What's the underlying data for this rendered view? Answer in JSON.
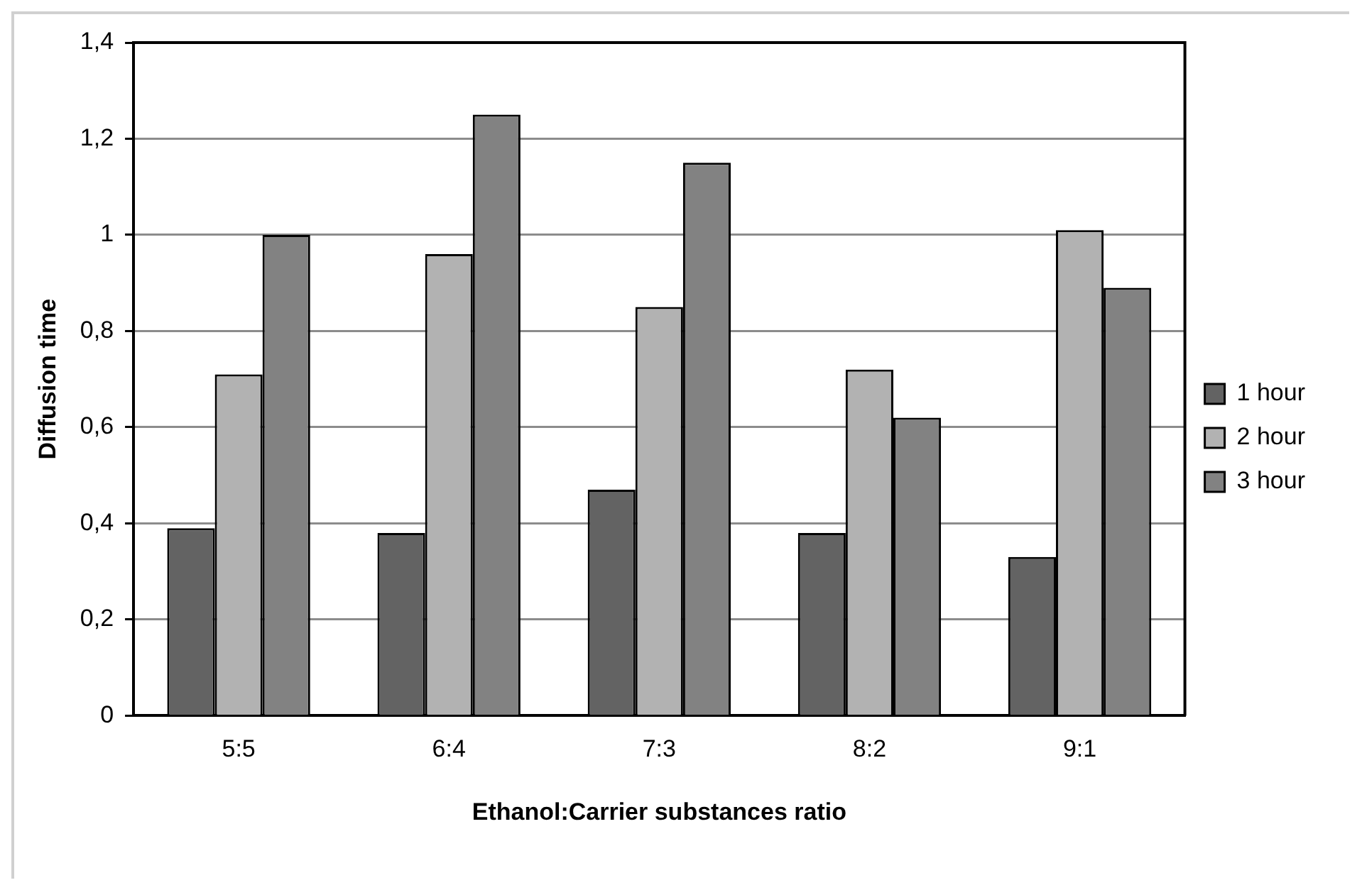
{
  "chart_data": {
    "type": "bar",
    "xlabel": "Ethanol:Carrier substances ratio",
    "ylabel": "Diffusion time",
    "categories": [
      "5:5",
      "6:4",
      "7:3",
      "8:2",
      "9:1"
    ],
    "series": [
      {
        "name": "1 hour",
        "color": "#636363",
        "values": [
          0.39,
          0.38,
          0.47,
          0.38,
          0.33
        ]
      },
      {
        "name": "2 hour",
        "color": "#b2b2b2",
        "values": [
          0.71,
          0.96,
          0.85,
          0.72,
          1.01
        ]
      },
      {
        "name": "3 hour",
        "color": "#828282",
        "values": [
          1.0,
          1.25,
          1.15,
          0.62,
          0.89
        ]
      }
    ],
    "ylim": [
      0,
      1.4
    ],
    "yticks": [
      0,
      {
        "value": 0.2,
        "label": "0,2"
      },
      {
        "value": 0.4,
        "label": "0,4"
      },
      {
        "value": 0.6,
        "label": "0,6"
      },
      {
        "value": 0.8,
        "label": "0,8"
      },
      1,
      {
        "value": 1.2,
        "label": "1,2"
      },
      {
        "value": 1.4,
        "label": "1,4"
      }
    ],
    "grid": "y",
    "legend": "right"
  }
}
